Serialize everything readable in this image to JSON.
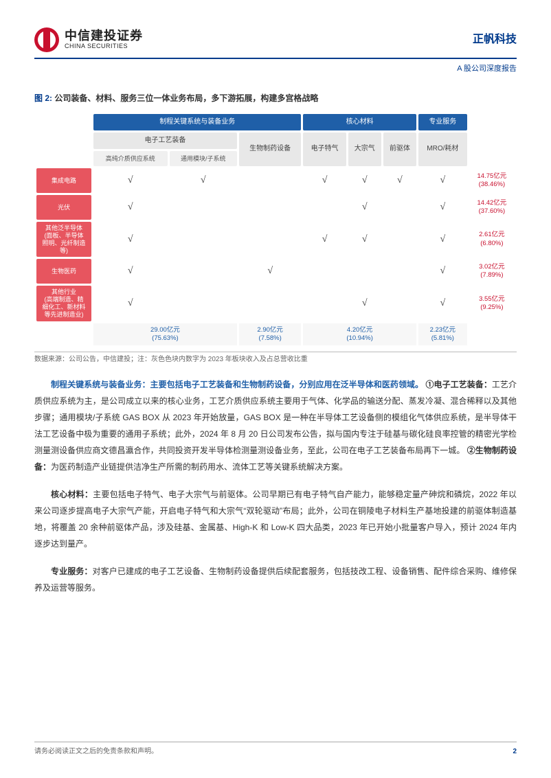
{
  "header": {
    "logo_cn": "中信建投证券",
    "logo_en": "CHINA SECURITIES",
    "company": "正帆科技",
    "subtitle": "A 股公司深度报告"
  },
  "figure": {
    "number": "图 2:",
    "title": "公司装备、材料、服务三位一体业务布局，多下游拓展，构建多宫格战略",
    "top_groups": [
      {
        "label": "制程关键系统与装备业务",
        "span": 3,
        "bg": "#1f5fa8"
      },
      {
        "label": "核心材料",
        "span": 3,
        "bg": "#1f5fa8"
      },
      {
        "label": "专业服务",
        "span": 1,
        "bg": "#1f5fa8"
      }
    ],
    "mid_groups": [
      {
        "label": "电子工艺装备",
        "span": 2
      },
      {
        "label": "生物制药设备",
        "span": 1
      },
      {
        "label": "电子特气",
        "span": 1
      },
      {
        "label": "大宗气",
        "span": 1
      },
      {
        "label": "前驱体",
        "span": 1
      },
      {
        "label": "MRO/耗材",
        "span": 1
      }
    ],
    "sub_groups": [
      {
        "label": "高纯介质供应系统"
      },
      {
        "label": "通用模块/子系统"
      }
    ],
    "rows": [
      {
        "label": "集成电路",
        "ticks": [
          "√",
          "√",
          "",
          "√",
          "√",
          "√",
          "√"
        ],
        "rev": "14.75亿元",
        "pct": "(38.46%)"
      },
      {
        "label": "光伏",
        "ticks": [
          "√",
          "",
          "",
          "",
          "√",
          "",
          "√"
        ],
        "rev": "14.42亿元",
        "pct": "(37.60%)"
      },
      {
        "label": "其他泛半导体\n(面板、半导体\n照明、光纤制造\n等)",
        "ticks": [
          "√",
          "",
          "",
          "√",
          "√",
          "",
          "√"
        ],
        "rev": "2.61亿元",
        "pct": "(6.80%)"
      },
      {
        "label": "生物医药",
        "ticks": [
          "√",
          "",
          "√",
          "",
          "",
          "",
          "√"
        ],
        "rev": "3.02亿元",
        "pct": "(7.89%)"
      },
      {
        "label": "其他行业\n(高端制造、精\n细化工、新材料\n等先进制造业)",
        "ticks": [
          "√",
          "",
          "",
          "",
          "√",
          "",
          "√"
        ],
        "rev": "3.55亿元",
        "pct": "(9.25%)"
      }
    ],
    "col_sums": [
      {
        "span": 2,
        "val": "29.00亿元",
        "pct": "(75.63%)"
      },
      {
        "span": 1,
        "val": "2.90亿元",
        "pct": "(7.58%)"
      },
      {
        "span": 3,
        "val": "4.20亿元",
        "pct": "(10.94%)"
      },
      {
        "span": 1,
        "val": "2.23亿元",
        "pct": "(5.81%)"
      }
    ],
    "source": "数据来源：公司公告，中信建投；注：灰色色块内数字为 2023 年板块收入及占总营收比重",
    "colors": {
      "header_blue": "#1f5fa8",
      "row_red": "#e7555f",
      "rev_red": "#c8102e",
      "sum_blue": "#1f5fa8",
      "gray_bg": "#e8e8e8"
    }
  },
  "paragraphs": {
    "p1_lead": "制程关键系统与装备业务：主要包括电子工艺装备和生物制药设备，分别应用在泛半导体和医药领域。",
    "p1_tag1": "①电子工艺装备：",
    "p1_body1": "工艺介质供应系统为主，是公司成立以来的核心业务，工艺介质供应系统主要用于气体、化学品的输送分配、蒸发冷凝、混合稀释以及其他步骤；通用模块/子系统 GAS BOX 从 2023 年开始放量，GAS BOX 是一种在半导体工艺设备侧的模组化气体供应系统，是半导体干法工艺设备中极为重要的通用子系统；此外，2024 年 8 月 20 日公司发布公告，拟与国内专注于硅基与碳化硅良率控管的精密光学检测量测设备供应商文德昌瀛合作，共同投资开发半导体检测量测设备业务，至此，公司在电子工艺装备布局再下一城。",
    "p1_tag2": "②生物制药设备：",
    "p1_body2": "为医药制造产业链提供洁净生产所需的制药用水、流体工艺等关键系统解决方案。",
    "p2_lead": "核心材料：",
    "p2_body": "主要包括电子特气、电子大宗气与前驱体。公司早期已有电子特气自产能力，能够稳定量产砷烷和磷烷，2022 年以来公司逐步提高电子大宗气产能，开启电子特气和大宗气“双轮驱动”布局；此外，公司在铜陵电子材料生产基地投建的前驱体制造基地，将覆盖 20 余种前驱体产品，涉及硅基、金属基、High-K 和 Low-K 四大品类，2023 年已开始小批量客户导入，预计 2024 年内逐步达到量产。",
    "p3_lead": "专业服务：",
    "p3_body": "对客户已建成的电子工艺设备、生物制药设备提供后续配套服务，包括技改工程、设备销售、配件综合采购、维修保养及运营等服务。"
  },
  "footer": {
    "disclaimer": "请务必阅读正文之后的免责条款和声明。",
    "page": "2"
  }
}
